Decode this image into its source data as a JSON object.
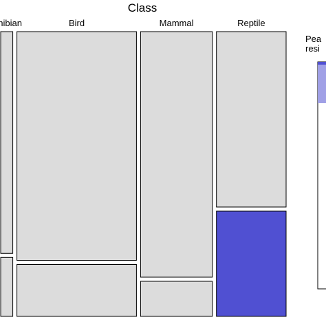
{
  "chart_data": {
    "type": "mosaic",
    "title": "Class",
    "categories": [
      "Amphibian",
      "Bird",
      "Mammal",
      "Reptile"
    ],
    "category_labels_visible": [
      "phibian",
      "Bird",
      "Mammal",
      "Reptile"
    ],
    "column_share": [
      0.035,
      0.345,
      0.207,
      0.201
    ],
    "rows": [
      "upper",
      "lower"
    ],
    "lower_share_by_column": [
      0.21,
      0.185,
      0.125,
      0.375
    ],
    "lower_cell_color_by_column": [
      "#dcdcdc",
      "#dcdcdc",
      "#dcdcdc",
      "#5050d2"
    ],
    "upper_cell_color": "#dcdcdc",
    "legend": {
      "title_lines": [
        "Pea",
        "resi"
      ],
      "placement": "right",
      "colors": [
        "#5050d2",
        "#a0a0e6",
        "#ffffff"
      ]
    }
  }
}
